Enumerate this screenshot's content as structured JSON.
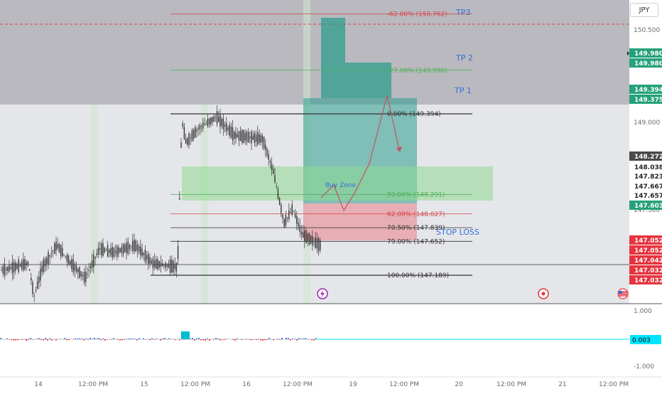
{
  "currency_button": "JPY",
  "colors": {
    "background": "#ffffff",
    "panel_top": "#b9b9bf",
    "panel_mid": "#e5e6ea",
    "profit_zone": "#2e9d8e",
    "loss_zone": "#e9a0a8",
    "buy_zone": "#8fd88f",
    "fib_red": "#d64545",
    "fib_green": "#4caf50",
    "tag_green": "#26a17a",
    "tag_red": "#e5343f",
    "tag_dark": "#4a4a4a",
    "tp_blue": "#2f6fd6"
  },
  "chart_data": {
    "type": "line",
    "symbol_currency": "JPY",
    "price_range": [
      146.8,
      150.95
    ],
    "x_ticks": [
      "14",
      "12:00 PM",
      "15",
      "12:00 PM",
      "16",
      "12:00 PM",
      "19",
      "12:00 PM",
      "20",
      "12:00 PM",
      "21",
      "12:00 PM"
    ],
    "price_axis_labels": [
      "150.500",
      "149.000",
      "147.500"
    ],
    "indicator_axis_labels": [
      "1.000",
      "-1.000"
    ],
    "fib_levels": [
      {
        "label": "-62.00% (150.762)",
        "price": 150.762,
        "color": "red"
      },
      {
        "label": "-27.00% (149.990)",
        "price": 149.99,
        "color": "green"
      },
      {
        "label": "0.00% (149.394)",
        "price": 149.394,
        "color": "dark"
      },
      {
        "label": "50.00% (148.291)",
        "price": 148.291,
        "color": "green"
      },
      {
        "label": "62.00% (148.027)",
        "price": 148.027,
        "color": "red"
      },
      {
        "label": "70.50% (147.839)",
        "price": 147.839,
        "color": "dark"
      },
      {
        "label": "79.00% (147.652)",
        "price": 147.652,
        "color": "dark"
      },
      {
        "label": "100.00% (147.189)",
        "price": 147.189,
        "color": "dark"
      }
    ],
    "annotations": [
      {
        "text": "TP3",
        "price": 150.762
      },
      {
        "text": "TP 2",
        "price": 149.99
      },
      {
        "text": "TP 1",
        "price": 149.394
      },
      {
        "text": "Buy Zone",
        "price": 148.027
      },
      {
        "text": "STOP LOSS",
        "price": 147.189
      }
    ],
    "price_tags": [
      {
        "text": "149.980",
        "price": 149.98,
        "color": "green"
      },
      {
        "text": "149.980",
        "price": 149.98,
        "color": "green"
      },
      {
        "text": "149.394",
        "price": 149.394,
        "color": "green"
      },
      {
        "text": "149.375",
        "price": 149.375,
        "color": "green"
      },
      {
        "text": "148.272",
        "price": 148.272,
        "color": "dark"
      },
      {
        "text": "148.038",
        "price": 148.038,
        "color": "white"
      },
      {
        "text": "147.823",
        "price": 147.823,
        "color": "white"
      },
      {
        "text": "147.667",
        "price": 147.667,
        "color": "white"
      },
      {
        "text": "147.657",
        "price": 147.657,
        "color": "white"
      },
      {
        "text": "147.603",
        "price": 147.603,
        "color": "green"
      },
      {
        "text": "147.052",
        "price": 147.052,
        "color": "red"
      },
      {
        "text": "147.052",
        "price": 147.052,
        "color": "red"
      },
      {
        "text": "147.042",
        "price": 147.042,
        "color": "red"
      },
      {
        "text": "147.032",
        "price": 147.032,
        "color": "red"
      },
      {
        "text": "147.032",
        "price": 147.032,
        "color": "red"
      }
    ],
    "indicator_value": "0.003",
    "grid": false
  }
}
